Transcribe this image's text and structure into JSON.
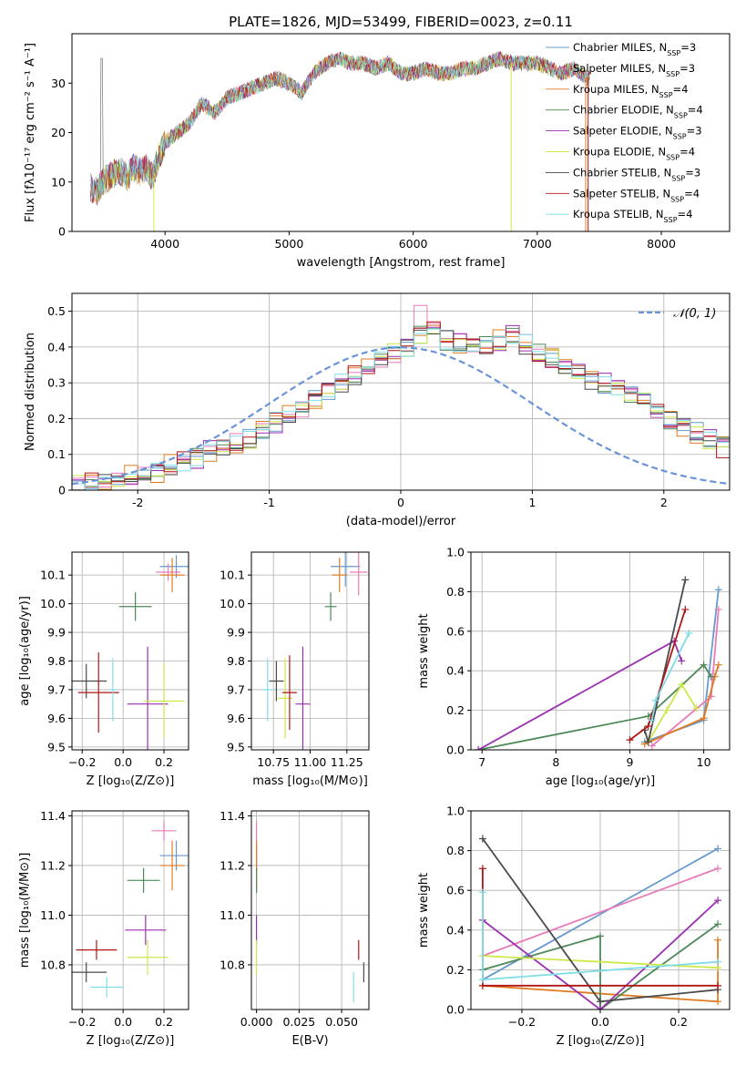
{
  "title": "PLATE=1826, MJD=53499, FIBERID=0023, z=0.11",
  "colors": [
    "#6a9fb5",
    "#e377c2",
    "#ff7f0e",
    "#2f7f3f",
    "#9467bd",
    "#c6e24a",
    "#333333",
    "#c81010",
    "#7fd8e6"
  ],
  "models": [
    {
      "label": "Chabrier MILES, N",
      "sub": "SSP",
      "suffix": "=3",
      "color": "#6699cc"
    },
    {
      "label": "Salpeter MILES, N",
      "sub": "SSP",
      "suffix": "=3",
      "color": "#e97ab8"
    },
    {
      "label": "Kroupa MILES, N",
      "sub": "SSP",
      "suffix": "=4",
      "color": "#e07b22"
    },
    {
      "label": "Chabrier ELODIE, N",
      "sub": "SSP",
      "suffix": "=4",
      "color": "#4e8a57"
    },
    {
      "label": "Salpeter ELODIE, N",
      "sub": "SSP",
      "suffix": "=3",
      "color": "#9a2fb0"
    },
    {
      "label": "Kroupa ELODIE, N",
      "sub": "SSP",
      "suffix": "=4",
      "color": "#cde84a"
    },
    {
      "label": "Chabrier STELIB, N",
      "sub": "SSP",
      "suffix": "=3",
      "color": "#4a4a4a"
    },
    {
      "label": "Salpeter STELIB, N",
      "sub": "SSP",
      "suffix": "=4",
      "color": "#b01515"
    },
    {
      "label": "Kroupa STELIB, N",
      "sub": "SSP",
      "suffix": "=4",
      "color": "#7fdde8"
    }
  ],
  "chart_data": [
    {
      "id": "spectrum",
      "type": "line",
      "xlabel": "wavelength [Angstrom, rest frame]",
      "ylabel": "Flux [fλ10⁻¹⁷ erg cm⁻² s⁻¹ A⁻¹]",
      "xlim": [
        3250,
        8550
      ],
      "ylim": [
        0,
        40
      ],
      "xticks": [
        4000,
        5000,
        6000,
        7000,
        8000
      ],
      "yticks": [
        0,
        10,
        20,
        30
      ],
      "x": [
        3400,
        3450,
        3500,
        3550,
        3600,
        3650,
        3700,
        3750,
        3800,
        3850,
        3900,
        3950,
        4000,
        4100,
        4200,
        4300,
        4400,
        4500,
        4600,
        4700,
        4800,
        4900,
        5000,
        5100,
        5200,
        5300,
        5400,
        5500,
        5600,
        5700,
        5800,
        5900,
        6000,
        6100,
        6200,
        6300,
        6400,
        6500,
        6600,
        6700,
        6800,
        6900,
        7000,
        7100,
        7200,
        7300,
        7400,
        7500,
        7600,
        7700,
        7800,
        7900,
        8000,
        8100,
        8200,
        8300,
        8400,
        8500
      ],
      "y": [
        9,
        8,
        10,
        11,
        12,
        12,
        11,
        13,
        12,
        13,
        11,
        15,
        18,
        20,
        22,
        26,
        24,
        27,
        28,
        29,
        30,
        31,
        30,
        28,
        32,
        34,
        35,
        34,
        34,
        33,
        34,
        32,
        32,
        33,
        32,
        32,
        33,
        33,
        34,
        35,
        34,
        34,
        34,
        33,
        32,
        33,
        31,
        31,
        31,
        31,
        32,
        32,
        32,
        31,
        31,
        30,
        30,
        30
      ],
      "grid": false
    },
    {
      "id": "residuals",
      "type": "histogram",
      "xlabel": "(data-model)/error",
      "ylabel": "Normed distribution",
      "xlim": [
        -2.5,
        2.5
      ],
      "ylim": [
        0,
        0.55
      ],
      "xticks": [
        -2,
        -1,
        0,
        1,
        2
      ],
      "yticks": [
        0.0,
        0.1,
        0.2,
        0.3,
        0.4,
        0.5
      ],
      "bin_edges_start": -2.5,
      "bin_width": 0.1,
      "hist_values": [
        0.02,
        0.02,
        0.03,
        0.03,
        0.04,
        0.05,
        0.05,
        0.07,
        0.08,
        0.09,
        0.11,
        0.12,
        0.13,
        0.14,
        0.17,
        0.19,
        0.21,
        0.23,
        0.25,
        0.28,
        0.3,
        0.32,
        0.34,
        0.36,
        0.38,
        0.4,
        0.43,
        0.45,
        0.42,
        0.41,
        0.4,
        0.41,
        0.42,
        0.44,
        0.41,
        0.39,
        0.37,
        0.35,
        0.33,
        0.31,
        0.3,
        0.29,
        0.27,
        0.25,
        0.22,
        0.2,
        0.18,
        0.16,
        0.14,
        0.12
      ],
      "gaussian": {
        "label": "𝒩(0, 1)",
        "mean": 0,
        "sigma": 1,
        "color": "#6a93d8"
      },
      "grid": true,
      "legend": "top-right"
    },
    {
      "id": "age_vs_Z",
      "type": "scatter",
      "xlabel": "Z [log₁₀(Z/Z⊙)]",
      "ylabel": "age  [log₁₀(age/yr)]",
      "xlim": [
        -0.25,
        0.32
      ],
      "ylim": [
        9.49,
        10.18
      ],
      "xticks": [
        -0.2,
        0.0,
        0.2
      ],
      "xticklabels": [
        "−0.2",
        "0.0",
        "0.2"
      ],
      "yticks": [
        9.5,
        9.6,
        9.7,
        9.8,
        9.9,
        10.0,
        10.1
      ],
      "yticklabels": [
        "9.5",
        "9.6",
        "9.7",
        "9.8",
        "9.9",
        "10.0",
        "10.1"
      ],
      "points": [
        {
          "m": 0,
          "x": 0.26,
          "y": 10.13,
          "ex": 0.08,
          "ey": 0.04
        },
        {
          "m": 1,
          "x": 0.22,
          "y": 10.11,
          "ex": 0.06,
          "ey": 0.03
        },
        {
          "m": 2,
          "x": 0.24,
          "y": 10.1,
          "ex": 0.06,
          "ey": 0.06
        },
        {
          "m": 3,
          "x": 0.06,
          "y": 9.99,
          "ex": 0.08,
          "ey": 0.05
        },
        {
          "m": 4,
          "x": 0.12,
          "y": 9.65,
          "ex": 0.1,
          "ey": 0.2
        },
        {
          "m": 5,
          "x": 0.2,
          "y": 9.66,
          "ex": 0.1,
          "ey": 0.13
        },
        {
          "m": 6,
          "x": -0.18,
          "y": 9.73,
          "ex": 0.1,
          "ey": 0.06
        },
        {
          "m": 7,
          "x": -0.12,
          "y": 9.69,
          "ex": 0.1,
          "ey": 0.14
        },
        {
          "m": 8,
          "x": -0.05,
          "y": 9.7,
          "ex": 0.02,
          "ey": 0.11
        }
      ],
      "grid": true
    },
    {
      "id": "age_vs_mass",
      "type": "scatter",
      "xlabel": "mass [log₁₀(M/M⊙)]",
      "ylabel": "",
      "xlim": [
        10.6,
        11.4
      ],
      "ylim": [
        9.49,
        10.18
      ],
      "xticks": [
        10.75,
        11.0,
        11.25
      ],
      "xticklabels": [
        "10.75",
        "11.00",
        "11.25"
      ],
      "yticks": [
        9.5,
        9.6,
        9.7,
        9.8,
        9.9,
        10.0,
        10.1
      ],
      "yticklabels": [
        "9.5",
        "9.6",
        "9.7",
        "9.8",
        "9.9",
        "10.0",
        "10.1"
      ],
      "points": [
        {
          "m": 0,
          "x": 11.24,
          "y": 10.13,
          "ex": 0.1,
          "ey": 0.07
        },
        {
          "m": 1,
          "x": 11.33,
          "y": 10.11,
          "ex": 0.06,
          "ey": 0.08
        },
        {
          "m": 2,
          "x": 11.2,
          "y": 10.1,
          "ex": 0.05,
          "ey": 0.06
        },
        {
          "m": 3,
          "x": 11.14,
          "y": 9.99,
          "ex": 0.04,
          "ey": 0.05
        },
        {
          "m": 4,
          "x": 10.95,
          "y": 9.65,
          "ex": 0.05,
          "ey": 0.2
        },
        {
          "m": 5,
          "x": 10.83,
          "y": 9.67,
          "ex": 0.05,
          "ey": 0.14
        },
        {
          "m": 6,
          "x": 10.77,
          "y": 9.73,
          "ex": 0.05,
          "ey": 0.07
        },
        {
          "m": 7,
          "x": 10.86,
          "y": 9.69,
          "ex": 0.05,
          "ey": 0.13
        },
        {
          "m": 8,
          "x": 10.71,
          "y": 9.7,
          "ex": 0.04,
          "ey": 0.11
        }
      ],
      "grid": true
    },
    {
      "id": "massweight_vs_age",
      "type": "line",
      "xlabel": "age  [log₁₀(age/yr)]",
      "ylabel": "mass weight",
      "xlim": [
        6.85,
        10.35
      ],
      "ylim": [
        0,
        1
      ],
      "xticks": [
        7,
        8,
        9,
        10
      ],
      "xticklabels": [
        "7",
        "8",
        "9",
        "10"
      ],
      "yticks": [
        0.0,
        0.2,
        0.4,
        0.6,
        0.8,
        1.0
      ],
      "yticklabels": [
        "0.0",
        "0.2",
        "0.4",
        "0.6",
        "0.8",
        "1.0"
      ],
      "series": [
        {
          "m": 0,
          "x": [
            9.2,
            10.0,
            10.2
          ],
          "y": [
            0.04,
            0.15,
            0.81
          ]
        },
        {
          "m": 1,
          "x": [
            9.3,
            10.1,
            10.2
          ],
          "y": [
            0.02,
            0.27,
            0.71
          ]
        },
        {
          "m": 2,
          "x": [
            9.2,
            10.0,
            10.15,
            10.2
          ],
          "y": [
            0.03,
            0.16,
            0.37,
            0.43
          ]
        },
        {
          "m": 3,
          "x": [
            6.95,
            9.25,
            10.0,
            10.1
          ],
          "y": [
            0.0,
            0.17,
            0.43,
            0.37
          ]
        },
        {
          "m": 4,
          "x": [
            6.95,
            9.6,
            9.7
          ],
          "y": [
            0.0,
            0.55,
            0.45
          ]
        },
        {
          "m": 5,
          "x": [
            9.25,
            9.5,
            9.7,
            9.9
          ],
          "y": [
            0.04,
            0.2,
            0.33,
            0.21
          ]
        },
        {
          "m": 6,
          "x": [
            9.2,
            9.25,
            9.75
          ],
          "y": [
            0.1,
            0.04,
            0.86
          ]
        },
        {
          "m": 7,
          "x": [
            9.0,
            9.25,
            9.75
          ],
          "y": [
            0.05,
            0.12,
            0.71
          ]
        },
        {
          "m": 8,
          "x": [
            9.3,
            9.35,
            9.8
          ],
          "y": [
            0.15,
            0.25,
            0.59
          ]
        }
      ],
      "grid": true
    },
    {
      "id": "mass_vs_Z",
      "type": "scatter",
      "xlabel": "Z [log₁₀(Z/Z⊙)]",
      "ylabel": "mass [log₁₀(M/M⊙)]",
      "xlim": [
        -0.25,
        0.32
      ],
      "ylim": [
        10.62,
        11.42
      ],
      "xticks": [
        -0.2,
        0.0,
        0.2
      ],
      "xticklabels": [
        "−0.2",
        "0.0",
        "0.2"
      ],
      "yticks": [
        10.8,
        11.0,
        11.2,
        11.4
      ],
      "yticklabels": [
        "10.8",
        "11.0",
        "11.2",
        "11.4"
      ],
      "points": [
        {
          "m": 0,
          "x": 0.26,
          "y": 11.24,
          "ex": 0.08,
          "ey": 0.06
        },
        {
          "m": 1,
          "x": 0.2,
          "y": 11.34,
          "ex": 0.06,
          "ey": 0.04
        },
        {
          "m": 2,
          "x": 0.24,
          "y": 11.2,
          "ex": 0.06,
          "ey": 0.1
        },
        {
          "m": 3,
          "x": 0.1,
          "y": 11.14,
          "ex": 0.08,
          "ey": 0.05
        },
        {
          "m": 4,
          "x": 0.11,
          "y": 10.94,
          "ex": 0.1,
          "ey": 0.06
        },
        {
          "m": 5,
          "x": 0.12,
          "y": 10.83,
          "ex": 0.1,
          "ey": 0.07
        },
        {
          "m": 6,
          "x": -0.18,
          "y": 10.77,
          "ex": 0.1,
          "ey": 0.04
        },
        {
          "m": 7,
          "x": -0.13,
          "y": 10.86,
          "ex": 0.1,
          "ey": 0.04
        },
        {
          "m": 8,
          "x": -0.08,
          "y": 10.71,
          "ex": 0.08,
          "ey": 0.04
        }
      ],
      "grid": true
    },
    {
      "id": "mass_vs_ebv",
      "type": "scatter",
      "xlabel": "E(B-V)",
      "ylabel": "",
      "xlim": [
        -0.003,
        0.066
      ],
      "ylim": [
        10.62,
        11.42
      ],
      "xticks": [
        0.0,
        0.025,
        0.05
      ],
      "xticklabels": [
        "0.000",
        "0.025",
        "0.050"
      ],
      "yticks": [
        10.8,
        11.0,
        11.2,
        11.4
      ],
      "yticklabels": [
        "10.8",
        "11.0",
        "11.2",
        "11.4"
      ],
      "points": [
        {
          "m": 0,
          "x": 0.0,
          "y": 11.24,
          "ex": 0.0,
          "ey": 0.06
        },
        {
          "m": 1,
          "x": 0.0,
          "y": 11.34,
          "ex": 0.0,
          "ey": 0.04
        },
        {
          "m": 2,
          "x": 0.0,
          "y": 11.2,
          "ex": 0.0,
          "ey": 0.1
        },
        {
          "m": 3,
          "x": 0.0,
          "y": 11.14,
          "ex": 0.0,
          "ey": 0.05
        },
        {
          "m": 4,
          "x": 0.0,
          "y": 10.94,
          "ex": 0.0,
          "ey": 0.06
        },
        {
          "m": 5,
          "x": 0.0,
          "y": 10.83,
          "ex": 0.0,
          "ey": 0.07
        },
        {
          "m": 6,
          "x": 0.063,
          "y": 10.77,
          "ex": 0.0,
          "ey": 0.04
        },
        {
          "m": 7,
          "x": 0.06,
          "y": 10.86,
          "ex": 0.0,
          "ey": 0.04
        },
        {
          "m": 8,
          "x": 0.057,
          "y": 10.71,
          "ex": 0.0,
          "ey": 0.06
        }
      ],
      "grid": true
    },
    {
      "id": "massweight_vs_Z",
      "type": "line",
      "xlabel": "Z [log₁₀(Z/Z⊙)]",
      "ylabel": "mass weight",
      "xlim": [
        -0.33,
        0.33
      ],
      "ylim": [
        0,
        1
      ],
      "xticks": [
        -0.2,
        0.0,
        0.2
      ],
      "xticklabels": [
        "−0.2",
        "0.0",
        "0.2"
      ],
      "yticks": [
        0.0,
        0.2,
        0.4,
        0.6,
        0.8,
        1.0
      ],
      "yticklabels": [
        "0.0",
        "0.2",
        "0.4",
        "0.6",
        "0.8",
        "1.0"
      ],
      "series": [
        {
          "m": 0,
          "x": [
            -0.3,
            0.3
          ],
          "y": [
            0.15,
            0.81
          ]
        },
        {
          "m": 1,
          "x": [
            -0.3,
            0.3
          ],
          "y": [
            0.27,
            0.71
          ]
        },
        {
          "m": 2,
          "x": [
            -0.3,
            0.3,
            0.3
          ],
          "y": [
            0.12,
            0.04,
            0.35
          ]
        },
        {
          "m": 3,
          "x": [
            -0.3,
            0.0,
            0.0,
            0.3
          ],
          "y": [
            0.2,
            0.37,
            0.0,
            0.43
          ]
        },
        {
          "m": 4,
          "x": [
            -0.3,
            0.0,
            0.3
          ],
          "y": [
            0.45,
            0.0,
            0.55
          ]
        },
        {
          "m": 5,
          "x": [
            -0.3,
            0.3
          ],
          "y": [
            0.27,
            0.21
          ]
        },
        {
          "m": 6,
          "x": [
            -0.3,
            0.0,
            0.3
          ],
          "y": [
            0.86,
            0.04,
            0.1
          ]
        },
        {
          "m": 7,
          "x": [
            -0.3,
            -0.3,
            0.3
          ],
          "y": [
            0.71,
            0.12,
            0.12
          ]
        },
        {
          "m": 8,
          "x": [
            -0.3,
            -0.3,
            0.3
          ],
          "y": [
            0.59,
            0.15,
            0.24
          ]
        }
      ],
      "grid": true
    }
  ]
}
